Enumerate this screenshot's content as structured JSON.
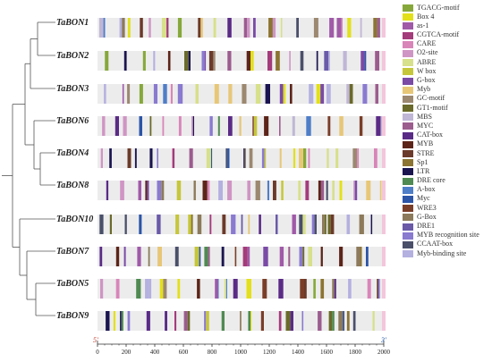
{
  "axis": {
    "start_label": "5'",
    "end_label": "3'",
    "min": 0,
    "max": 2000,
    "ticks": [
      "0",
      "200",
      "400",
      "600",
      "800",
      "1000",
      "1200",
      "1400",
      "1600",
      "1800",
      "2000"
    ]
  },
  "tree": [
    {
      "label": "TaBON1"
    },
    {
      "label": "TaBON2"
    },
    {
      "label": "TaBON3"
    },
    {
      "label": "TaBON6"
    },
    {
      "label": "TaBON4"
    },
    {
      "label": "TaBON8"
    },
    {
      "label": "TaBON10"
    },
    {
      "label": "TaBON7"
    },
    {
      "label": "TaBON5"
    },
    {
      "label": "TaBON9"
    }
  ],
  "legend": [
    {
      "label": "TGACG-motif",
      "color": "#86a83a"
    },
    {
      "label": "Box 4",
      "color": "#e3e01a"
    },
    {
      "label": "as-1",
      "color": "#a05aa8"
    },
    {
      "label": "CGTCA-motif",
      "color": "#a43b7b"
    },
    {
      "label": "CARE",
      "color": "#d985b9"
    },
    {
      "label": "O2-site",
      "color": "#cf95c4"
    },
    {
      "label": "ABRE",
      "color": "#d7e08a"
    },
    {
      "label": "W box",
      "color": "#c6c63a"
    },
    {
      "label": "G-box",
      "color": "#7a4aa6"
    },
    {
      "label": "Myb",
      "color": "#e7c777"
    },
    {
      "label": "GC-motif",
      "color": "#9c8870"
    },
    {
      "label": "GT1-motif",
      "color": "#6a6a2a"
    },
    {
      "label": "MBS",
      "color": "#c0b6d6"
    },
    {
      "label": "MYC",
      "color": "#9c5c8e"
    },
    {
      "label": "CAT-box",
      "color": "#5a2b86"
    },
    {
      "label": "MYB",
      "color": "#5c2418"
    },
    {
      "label": "STRE",
      "color": "#6b3a2a"
    },
    {
      "label": "Sp1",
      "color": "#8c7432"
    },
    {
      "label": "LTR",
      "color": "#1a1450"
    },
    {
      "label": "DRE core",
      "color": "#4f8a52"
    },
    {
      "label": "A-box",
      "color": "#4f7ec8"
    },
    {
      "label": "Myc",
      "color": "#2c55a8"
    },
    {
      "label": "WRE3",
      "color": "#7a3e28"
    },
    {
      "label": "G-Box",
      "color": "#8c7a5a"
    },
    {
      "label": "DRE1",
      "color": "#6a5aa8"
    },
    {
      "label": "MYB recognition site",
      "color": "#8a7ad0"
    },
    {
      "label": "CCAAT-box",
      "color": "#4a4f6a"
    },
    {
      "label": "Myb-binding site",
      "color": "#b4b0e0"
    }
  ]
}
